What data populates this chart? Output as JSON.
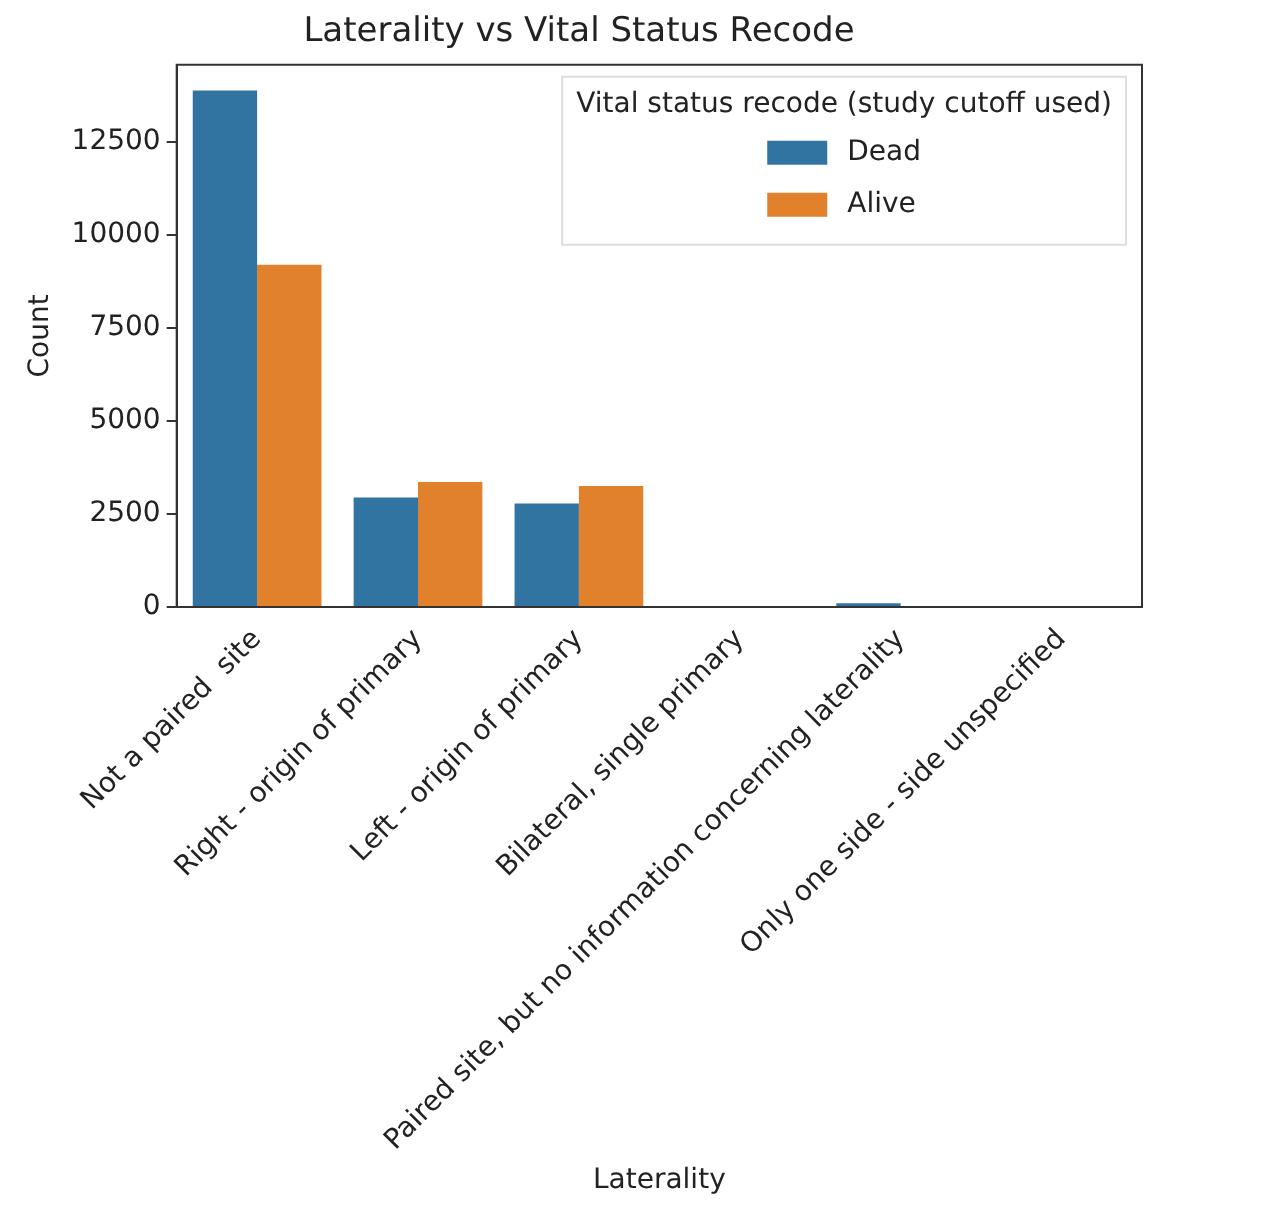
{
  "chart_data": {
    "type": "bar",
    "title": "Laterality vs Vital Status Recode",
    "xlabel": "Laterality",
    "ylabel": "Count",
    "categories": [
      "Not a paired  site",
      "Right - origin of primary",
      "Left - origin of primary",
      "Bilateral, single primary",
      "Paired site, but no information concerning laterality",
      "Only one side - side unspecified"
    ],
    "series": [
      {
        "name": "Dead",
        "color": "#3274a1",
        "values": [
          13880,
          2940,
          2780,
          0,
          100,
          0
        ]
      },
      {
        "name": "Alive",
        "color": "#e1812c",
        "values": [
          9200,
          3360,
          3250,
          0,
          null,
          0
        ]
      }
    ],
    "legend_title": "Vital status recode (study cutoff used)",
    "legend": "top right",
    "ylim": [
      0,
      14570
    ],
    "yticks": [
      0,
      2500,
      5000,
      7500,
      10000,
      12500
    ],
    "grid": false
  }
}
